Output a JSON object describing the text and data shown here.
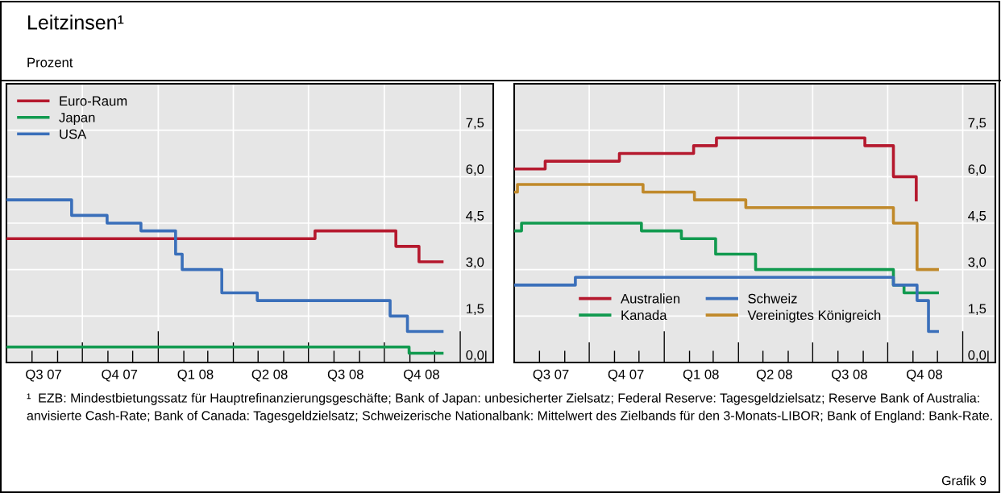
{
  "chart_data": [
    {
      "type": "step",
      "title": "Leitzinsen¹",
      "subtitle": "Prozent",
      "legend": "top left",
      "grid": true,
      "line_style": "solid",
      "xlim": [
        "2007-07-01",
        "2009-02-10"
      ],
      "xticks": [
        {
          "value": "2007-08-15",
          "label": "Q3 07"
        },
        {
          "value": "2007-11-15",
          "label": "Q4 07"
        },
        {
          "value": "2008-02-15",
          "label": "Q1 08"
        },
        {
          "value": "2008-05-15",
          "label": "Q2 08"
        },
        {
          "value": "2008-08-15",
          "label": "Q3 08"
        },
        {
          "value": "2008-11-15",
          "label": "Q4 08"
        }
      ],
      "ylim": [
        0,
        9
      ],
      "yticks": [
        {
          "value": 0,
          "label": "0,0"
        },
        {
          "value": 1.5,
          "label": "1,5"
        },
        {
          "value": 3,
          "label": "3,0"
        },
        {
          "value": 4.5,
          "label": "4,5"
        },
        {
          "value": 6,
          "label": "6,0"
        },
        {
          "value": 7.5,
          "label": "7,5"
        }
      ],
      "series": [
        {
          "name": "Euro-Raum",
          "color": "#b5192e",
          "x": [
            "2007-07-01",
            "2008-07-09",
            "2008-10-15",
            "2008-11-12",
            "2008-12-10"
          ],
          "values": [
            4.0,
            4.25,
            3.75,
            3.25,
            3.25
          ]
        },
        {
          "name": "Japan",
          "color": "#119a4f",
          "x": [
            "2007-07-01",
            "2008-10-31",
            "2008-12-10"
          ],
          "values": [
            0.5,
            0.3,
            0.3
          ]
        },
        {
          "name": "USA",
          "color": "#3a6fba",
          "x": [
            "2007-07-01",
            "2007-09-18",
            "2007-10-31",
            "2007-12-11",
            "2008-01-22",
            "2008-01-30",
            "2008-03-18",
            "2008-04-30",
            "2008-10-08",
            "2008-10-29",
            "2008-12-10"
          ],
          "values": [
            5.25,
            4.75,
            4.5,
            4.25,
            3.5,
            3.0,
            2.25,
            2.0,
            1.5,
            1.0,
            1.0
          ]
        }
      ]
    },
    {
      "type": "step",
      "legend": "bottom",
      "grid": true,
      "line_style": "solid",
      "xlim": [
        "2007-07-01",
        "2009-02-10"
      ],
      "xticks": [
        {
          "value": "2007-08-15",
          "label": "Q3 07"
        },
        {
          "value": "2007-11-15",
          "label": "Q4 07"
        },
        {
          "value": "2008-02-15",
          "label": "Q1 08"
        },
        {
          "value": "2008-05-15",
          "label": "Q2 08"
        },
        {
          "value": "2008-08-15",
          "label": "Q3 08"
        },
        {
          "value": "2008-11-15",
          "label": "Q4 08"
        }
      ],
      "ylim": [
        0,
        9
      ],
      "yticks": [
        {
          "value": 0,
          "label": "0,0"
        },
        {
          "value": 1.5,
          "label": "1,5"
        },
        {
          "value": 3,
          "label": "3,0"
        },
        {
          "value": 4.5,
          "label": "4,5"
        },
        {
          "value": 6,
          "label": "6,0"
        },
        {
          "value": 7.5,
          "label": "7,5"
        }
      ],
      "series": [
        {
          "name": "Australien",
          "color": "#b5192e",
          "x": [
            "2007-07-01",
            "2007-08-08",
            "2007-11-07",
            "2008-02-06",
            "2008-03-05",
            "2008-09-03",
            "2008-10-08",
            "2008-11-05"
          ],
          "values": [
            6.25,
            6.5,
            6.75,
            7.0,
            7.25,
            7.0,
            6.0,
            5.25
          ]
        },
        {
          "name": "Kanada",
          "color": "#119a4f",
          "x": [
            "2007-07-01",
            "2007-07-10",
            "2007-12-04",
            "2008-01-22",
            "2008-03-04",
            "2008-04-22",
            "2008-10-08",
            "2008-10-21",
            "2008-12-01"
          ],
          "values": [
            4.25,
            4.5,
            4.25,
            4.0,
            3.5,
            3.0,
            2.5,
            2.25,
            2.25
          ]
        },
        {
          "name": "Schweiz",
          "color": "#3a6fba",
          "x": [
            "2007-07-01",
            "2007-09-14",
            "2008-10-08",
            "2008-11-06",
            "2008-11-20",
            "2008-12-01"
          ],
          "values": [
            2.5,
            2.75,
            2.5,
            2.0,
            1.0,
            1.0
          ]
        },
        {
          "name": "Vereinigtes Königreich",
          "color": "#c0892a",
          "x": [
            "2007-07-01",
            "2007-07-05",
            "2007-12-06",
            "2008-02-07",
            "2008-04-10",
            "2008-10-08",
            "2008-11-06",
            "2008-12-01"
          ],
          "values": [
            5.5,
            5.75,
            5.5,
            5.25,
            5.0,
            4.5,
            3.0,
            3.0
          ]
        }
      ],
      "annotations": [
        "¹  EZB: Mindestbietungssatz für Hauptrefinanzierungsgeschäfte; Bank of Japan: unbesicherter Zielsatz; Federal Reserve: Tagesgeldzielsatz; Reserve Bank of Australia: anvisierte Cash-Rate; Bank of Canada: Tagesgeldzielsatz; Schweizerische Nationalbank: Mittelwert des Zielbands für den 3-Monats-LIBOR; Bank of England: Bank-Rate.",
        "Grafik 9"
      ]
    }
  ]
}
